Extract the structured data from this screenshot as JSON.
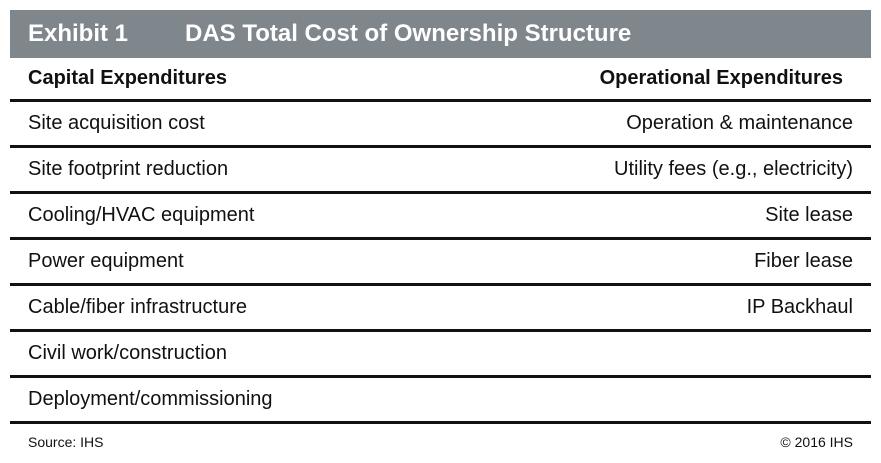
{
  "exhibit": {
    "number": "Exhibit 1",
    "title": "DAS Total Cost of Ownership Structure"
  },
  "table": {
    "headers": {
      "capex": "Capital Expenditures",
      "opex": "Operational Expenditures"
    },
    "rows": [
      {
        "capex": "Site acquisition cost",
        "opex": "Operation & maintenance"
      },
      {
        "capex": "Site footprint reduction",
        "opex": "Utility fees (e.g., electricity)"
      },
      {
        "capex": "Cooling/HVAC equipment",
        "opex": "Site lease"
      },
      {
        "capex": "Power equipment",
        "opex": "Fiber lease"
      },
      {
        "capex": "Cable/fiber infrastructure",
        "opex": "IP Backhaul"
      },
      {
        "capex": "Civil work/construction",
        "opex": ""
      },
      {
        "capex": "Deployment/commissioning",
        "opex": ""
      }
    ]
  },
  "footer": {
    "source": "Source: IHS",
    "copyright": "© 2016 IHS"
  },
  "colors": {
    "title_bar": "#7f868c",
    "rule": "#111111"
  }
}
